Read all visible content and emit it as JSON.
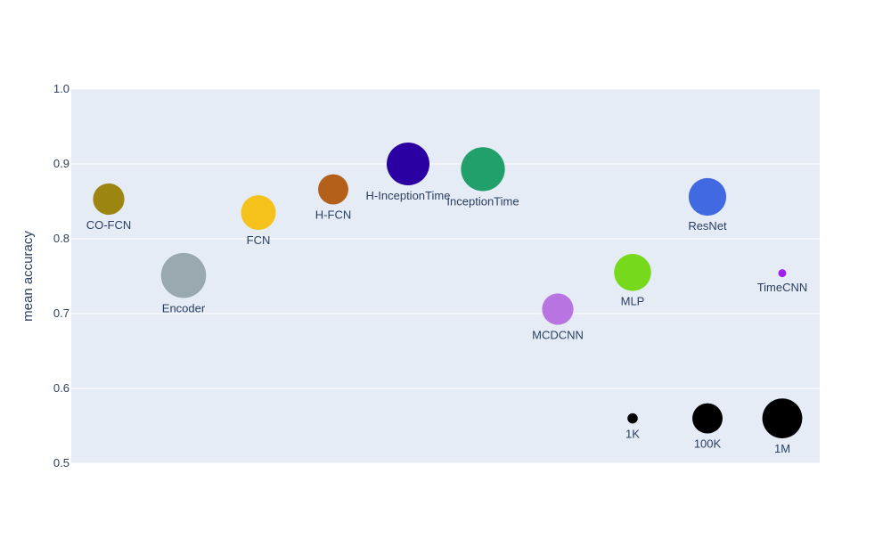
{
  "chart_data": {
    "type": "scatter",
    "subtype": "bubble",
    "title": "",
    "xlabel": "",
    "ylabel": "mean accuracy",
    "ylim": [
      0.5,
      1.0
    ],
    "yticks": [
      "0.5",
      "0.6",
      "0.7",
      "0.8",
      "0.9",
      "1.0"
    ],
    "grid": true,
    "plot_background": "#e5ecf6",
    "grid_color": "#ffffff",
    "text_color": "#2a3f5f",
    "series": [
      {
        "name": "CO-FCN",
        "x": 0,
        "y": 0.853,
        "size_rel": 0.55,
        "color": "#9c8511"
      },
      {
        "name": "Encoder",
        "x": 1,
        "y": 0.751,
        "size_rel": 0.79,
        "color": "#9aa8b0"
      },
      {
        "name": "FCN",
        "x": 2,
        "y": 0.835,
        "size_rel": 0.61,
        "color": "#f5c21b"
      },
      {
        "name": "H-FCN",
        "x": 3,
        "y": 0.866,
        "size_rel": 0.53,
        "color": "#b45f1a"
      },
      {
        "name": "H-InceptionTime",
        "x": 4,
        "y": 0.9,
        "size_rel": 0.75,
        "color": "#2a00a2"
      },
      {
        "name": "InceptionTime",
        "x": 5,
        "y": 0.893,
        "size_rel": 0.77,
        "color": "#22a06b"
      },
      {
        "name": "MCDCNN",
        "x": 6,
        "y": 0.706,
        "size_rel": 0.55,
        "color": "#b874e0"
      },
      {
        "name": "MLP",
        "x": 7,
        "y": 0.755,
        "size_rel": 0.65,
        "color": "#76d91b"
      },
      {
        "name": "ResNet",
        "x": 8,
        "y": 0.856,
        "size_rel": 0.66,
        "color": "#4169e1"
      },
      {
        "name": "TimeCNN",
        "x": 9,
        "y": 0.754,
        "size_rel": 0.14,
        "color": "#a020f0"
      }
    ],
    "size_legend": [
      {
        "label": "1K",
        "x": 7,
        "y": 0.56,
        "size_rel": 0.18,
        "color": "#000000"
      },
      {
        "label": "100K",
        "x": 8,
        "y": 0.56,
        "size_rel": 0.53,
        "color": "#000000"
      },
      {
        "label": "1M",
        "x": 9,
        "y": 0.56,
        "size_rel": 0.7,
        "color": "#000000"
      }
    ]
  }
}
